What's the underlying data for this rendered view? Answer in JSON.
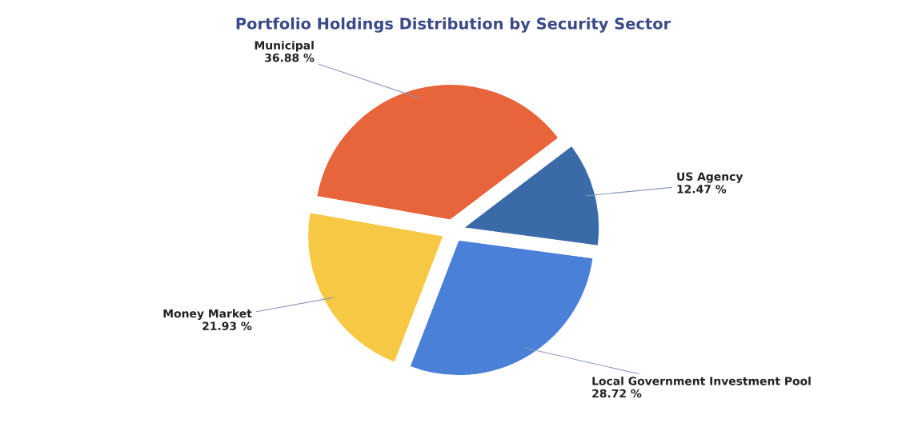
{
  "chart_data": {
    "type": "pie",
    "title": "Portfolio Holdings Distribution by Security Sector",
    "categories": [
      "Municipal",
      "US Agency",
      "Local Government Investment Pool",
      "Money Market"
    ],
    "values": [
      36.88,
      12.47,
      28.72,
      21.93
    ],
    "value_labels": [
      "36.88 %",
      "12.47 %",
      "28.72 %",
      "21.93 %"
    ],
    "colors": [
      "#e8643a",
      "#3a6aa8",
      "#4a80d8",
      "#f7c843"
    ],
    "legend": false
  }
}
